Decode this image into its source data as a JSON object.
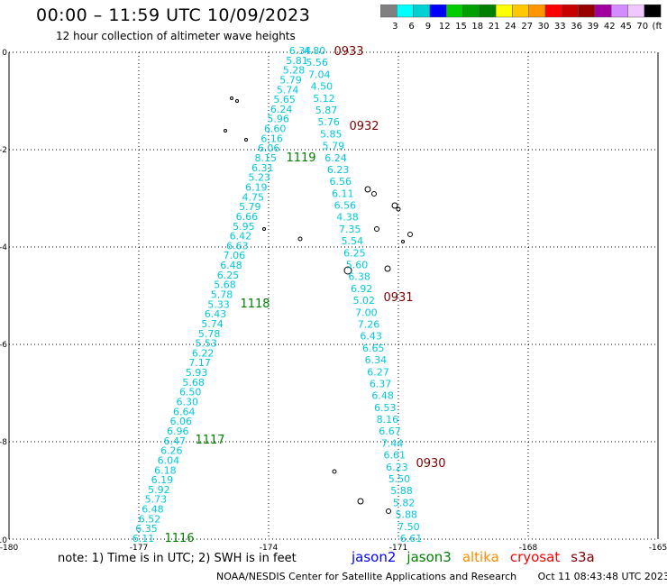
{
  "header": {
    "title": "00:00 – 11:59 UTC 10/09/2023",
    "subtitle": "12 hour collection of altimeter wave heights"
  },
  "colorbar": {
    "labels": [
      "3",
      "6",
      "9",
      "12",
      "15",
      "18",
      "21",
      "24",
      "27",
      "30",
      "33",
      "36",
      "39",
      "42",
      "45",
      "70",
      "(ft)"
    ],
    "colors": [
      "#808080",
      "#00ffff",
      "#00d2d2",
      "#0000ff",
      "#00cc00",
      "#00a000",
      "#008000",
      "#ffff00",
      "#ffc800",
      "#ff9600",
      "#ff0000",
      "#c80000",
      "#960000",
      "#a000a0",
      "#d28cff",
      "#f0c8ff",
      "#000000"
    ]
  },
  "axes": {
    "x_ticks": [
      "-180",
      "-177",
      "-174",
      "-171",
      "-168",
      "-165"
    ],
    "y_ticks": [
      "0",
      "-2",
      "-4",
      "-6",
      "-8",
      "-10"
    ]
  },
  "tracks": {
    "west_color": "#00c8dc",
    "east_color": "#00c8dc",
    "west_values": [
      "6.34",
      "5.81",
      "5.28",
      "5.79",
      "5.74",
      "5.65",
      "6.24",
      "5.96",
      "6.60",
      "6.16",
      "6.06",
      "8.15",
      "6.31",
      "5.23",
      "6.19",
      "4.75",
      "5.79",
      "6.66",
      "5.95",
      "6.42",
      "6.63",
      "7.06",
      "6.48",
      "6.25",
      "5.68",
      "5.78",
      "5.33",
      "6.43",
      "5.74",
      "5.78",
      "5.53",
      "6.22",
      "7.17",
      "5.93",
      "5.68",
      "6.50",
      "6.30",
      "6.64",
      "6.06",
      "6.96",
      "6.47",
      "6.26",
      "6.04",
      "6.18",
      "6.19",
      "5.92",
      "5.73",
      "6.48",
      "6.52",
      "6.35",
      "6.11"
    ],
    "east_values": [
      "4.80",
      "5.56",
      "7.04",
      "4.50",
      "5.12",
      "5.87",
      "5.76",
      "5.85",
      "5.79",
      "6.24",
      "6.23",
      "6.56",
      "6.11",
      "6.56",
      "4.38",
      "7.35",
      "5.54",
      "6.25",
      "5.60",
      "6.38",
      "6.92",
      "5.02",
      "7.00",
      "7.26",
      "6.43",
      "6.65",
      "6.34",
      "6.27",
      "6.37",
      "6.48",
      "6.53",
      "8.16",
      "6.67",
      "7.44",
      "6.61",
      "6.23",
      "5.50",
      "5.88",
      "5.82",
      "5.88",
      "7.50",
      "6.61"
    ]
  },
  "time_labels": [
    {
      "text": "0933",
      "color": "#800000"
    },
    {
      "text": "0932",
      "color": "#800000"
    },
    {
      "text": "0931",
      "color": "#800000"
    },
    {
      "text": "0930",
      "color": "#800000"
    },
    {
      "text": "1119",
      "color": "#008000"
    },
    {
      "text": "1118",
      "color": "#008000"
    },
    {
      "text": "1117",
      "color": "#008000"
    },
    {
      "text": "1116",
      "color": "#008000"
    }
  ],
  "footer": {
    "note": "note: 1) Time is in UTC; 2) SWH is in feet",
    "satellites": [
      {
        "name": "jason2",
        "color": "#0000ff"
      },
      {
        "name": "jason3",
        "color": "#008000"
      },
      {
        "name": "altika",
        "color": "#ff8c00"
      },
      {
        "name": "cryosat",
        "color": "#ff0000"
      },
      {
        "name": "s3a",
        "color": "#800000"
      }
    ],
    "credit": "NOAA/NESDIS Center for Satellite Applications and Research",
    "timestamp": "Oct 11 08:43:48 UTC 2023"
  }
}
